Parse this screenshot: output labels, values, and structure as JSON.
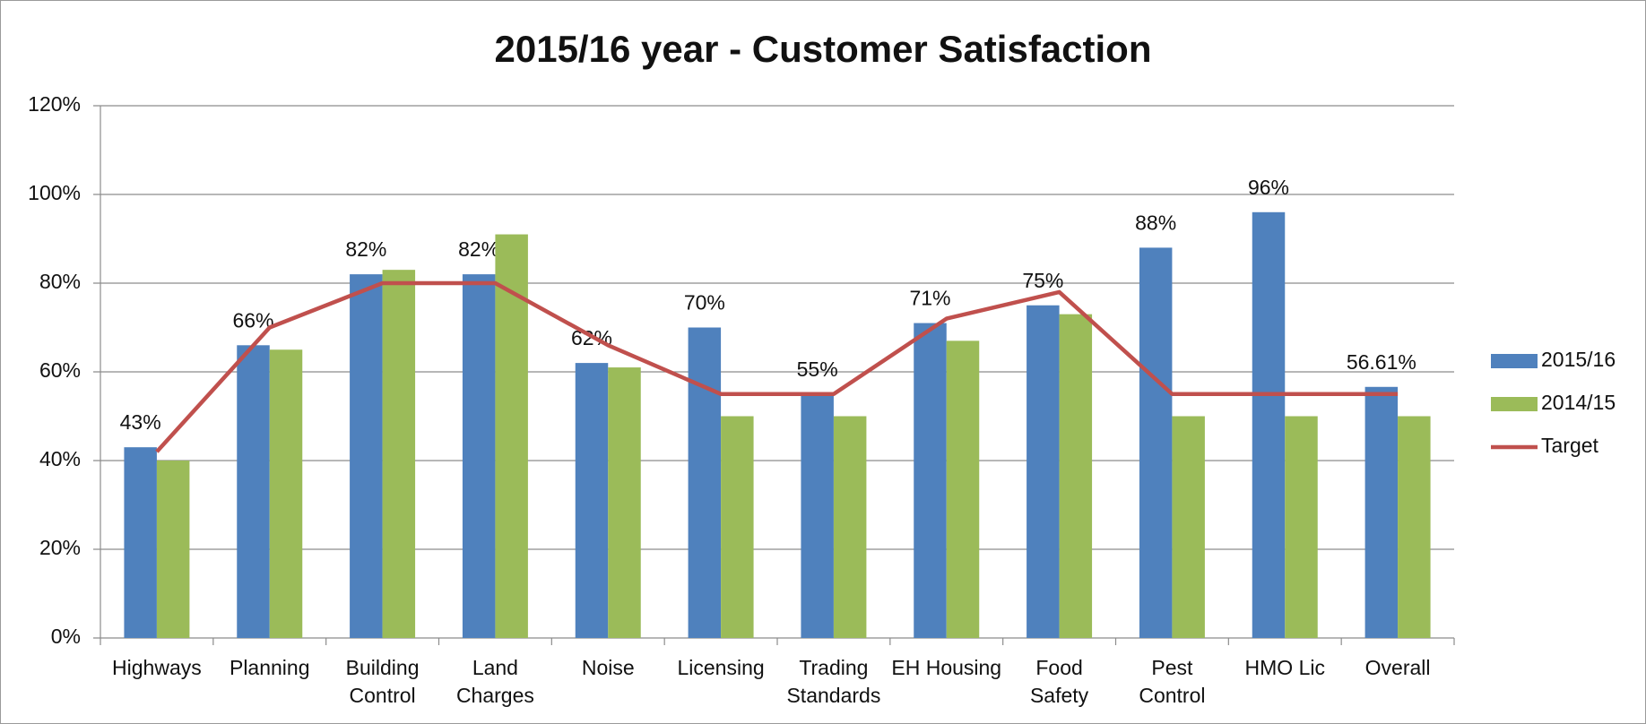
{
  "chart_data": {
    "type": "bar",
    "title": "2015/16 year - Customer Satisfaction",
    "categories": [
      "Highways",
      "Planning",
      "Building\nControl",
      "Land\nCharges",
      "Noise",
      "Licensing",
      "Trading\nStandards",
      "EH Housing",
      "Food\nSafety",
      "Pest\nControl",
      "HMO Lic",
      "Overall"
    ],
    "series": [
      {
        "name": "2015/16",
        "color": "#4f81bd",
        "type": "bar",
        "values": [
          43,
          66,
          82,
          82,
          62,
          70,
          55,
          71,
          75,
          88,
          96,
          56.61
        ],
        "value_labels": [
          "43%",
          "66%",
          "82%",
          "82%",
          "62%",
          "70%",
          "55%",
          "71%",
          "75%",
          "88%",
          "96%",
          "56.61%"
        ]
      },
      {
        "name": "2014/15",
        "color": "#9bbb59",
        "type": "bar",
        "values": [
          40,
          65,
          83,
          91,
          61,
          50,
          50,
          67,
          73,
          50,
          50,
          50
        ]
      },
      {
        "name": "Target",
        "color": "#c0504d",
        "type": "line",
        "values": [
          42,
          70,
          80,
          80,
          66,
          55,
          55,
          72,
          78,
          55,
          55,
          55
        ]
      }
    ],
    "ylim": [
      0,
      120
    ],
    "yticks": [
      {
        "value": 0,
        "label": "0%"
      },
      {
        "value": 20,
        "label": "20%"
      },
      {
        "value": 40,
        "label": "40%"
      },
      {
        "value": 60,
        "label": "60%"
      },
      {
        "value": 80,
        "label": "80%"
      },
      {
        "value": 100,
        "label": "100%"
      },
      {
        "value": 120,
        "label": "120%"
      }
    ],
    "grid": true,
    "legend": "right"
  }
}
